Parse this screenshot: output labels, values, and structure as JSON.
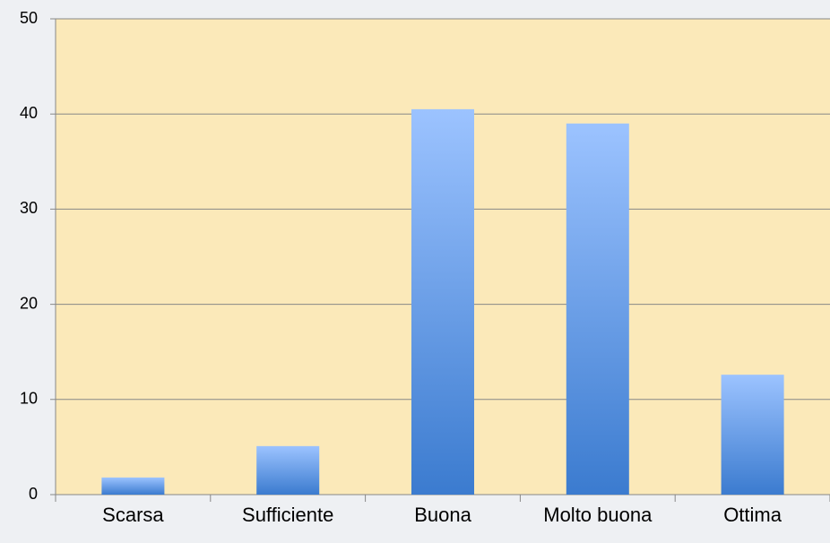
{
  "chart_data": {
    "type": "bar",
    "categories": [
      "Scarsa",
      "Sufficiente",
      "Buona",
      "Molto buona",
      "Ottima"
    ],
    "values": [
      1.8,
      5.1,
      40.5,
      39.0,
      12.6
    ],
    "gradient": [
      "#9cc3ff",
      "#3b7bcf"
    ],
    "ylim": [
      0,
      50
    ],
    "yticks": [
      0,
      10,
      20,
      30,
      40,
      50
    ],
    "grid": true
  }
}
